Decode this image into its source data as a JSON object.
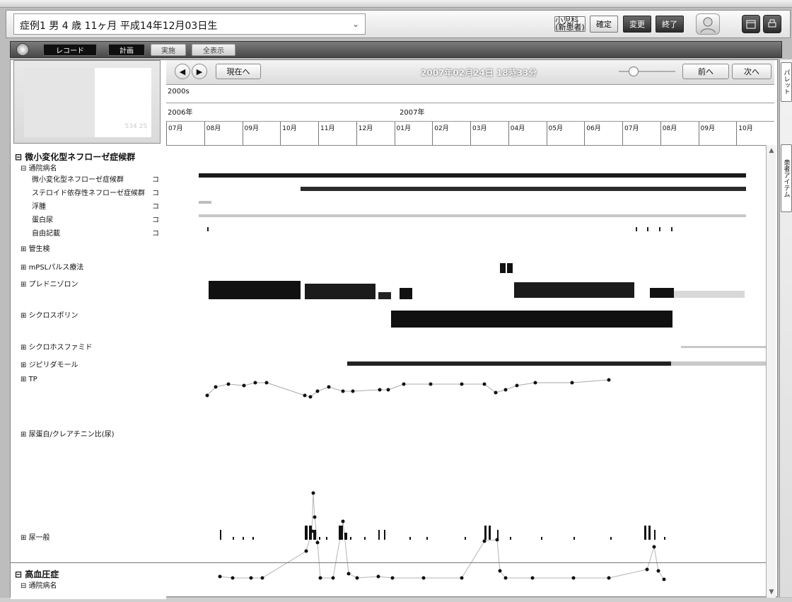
{
  "titlebar": {
    "patient": "症例1 男 4 歳 11ヶ月 平成14年12月03日生",
    "chevron": "⌄",
    "small_button": "小児科\n(新患者)",
    "confirm": "確定",
    "change": "変更",
    "exit": "終了"
  },
  "tabs": {
    "record": "レコード",
    "plan": "計画",
    "actual": "実施",
    "show_all": "全表示"
  },
  "toolbar": {
    "now": "現在へ",
    "datetime": "2007年02月24日 18時33分",
    "prev": "前へ",
    "next": "次へ"
  },
  "timeline": {
    "decade": "2000s",
    "year_2006": "2006年",
    "year_2007": "2007年",
    "months": [
      "07月",
      "08月",
      "09月",
      "10月",
      "11月",
      "12月",
      "01月",
      "02月",
      "03月",
      "04月",
      "05月",
      "06月",
      "07月",
      "08月",
      "09月",
      "10月"
    ]
  },
  "left_panel": {
    "thumb_note": "534 25",
    "section1": "微小変化型ネフローゼ症候群",
    "diag_group": "通院病名",
    "diags": [
      "微小変化型ネフローゼ症候群",
      "ステロイド依存性ネフローゼ症候群",
      "浮腫",
      "蛋白尿",
      "自由記載"
    ],
    "diag_marks": [
      "コ",
      "コ",
      "コ",
      "コ",
      "コ"
    ],
    "tracks": [
      "管生検",
      "mPSLパルス療法",
      "プレドニゾロン",
      "シクロスポリン",
      "シクロホスファミド",
      "ジピリダモール",
      "TP",
      "尿蛋白/クレアチニン比(尿)",
      "尿一般"
    ],
    "section2": "高血圧症",
    "diag_group2": "通院病名"
  },
  "rails": {
    "tab1": "パレット",
    "tab2": "患者アイテム"
  },
  "chart_data": {
    "type": "timeline",
    "series": [
      {
        "name": "微小変化型ネフローゼ症候群",
        "kind": "bar",
        "start": "2006-08-01",
        "end": "2007-10-31"
      },
      {
        "name": "ステロイド依存性ネフローゼ症候群",
        "kind": "bar",
        "start": "2006-11-01",
        "end": "2007-10-31"
      }
    ]
  },
  "colors": {
    "accent": "#1b1b1b",
    "panel": "#ffffff",
    "frame": "#bdbdbd"
  }
}
